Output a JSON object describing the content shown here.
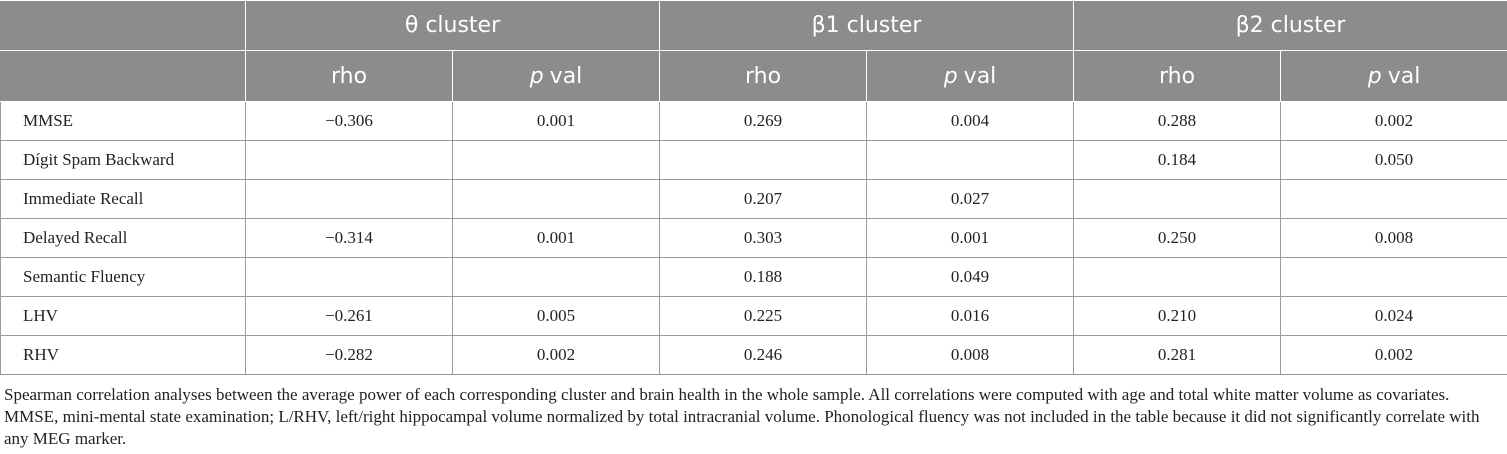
{
  "table": {
    "groups": [
      "θ cluster",
      "β1 cluster",
      "β2 cluster"
    ],
    "subheaders": [
      {
        "text": "rho"
      },
      {
        "italic": "p",
        "text": "val"
      },
      {
        "text": "rho"
      },
      {
        "italic": "p",
        "text": "val"
      },
      {
        "text": "rho"
      },
      {
        "italic": "p",
        "text": "val"
      }
    ],
    "rows": [
      {
        "label": "MMSE",
        "cells": [
          "−0.306",
          "0.001",
          "0.269",
          "0.004",
          "0.288",
          "0.002"
        ]
      },
      {
        "label": "Dígit Spam Backward",
        "cells": [
          null,
          null,
          null,
          null,
          "0.184",
          "0.050"
        ]
      },
      {
        "label": "Immediate Recall",
        "cells": [
          null,
          null,
          "0.207",
          "0.027",
          null,
          null
        ]
      },
      {
        "label": "Delayed Recall",
        "cells": [
          "−0.314",
          "0.001",
          "0.303",
          "0.001",
          "0.250",
          "0.008"
        ]
      },
      {
        "label": "Semantic Fluency",
        "cells": [
          null,
          null,
          "0.188",
          "0.049",
          null,
          null
        ]
      },
      {
        "label": "LHV",
        "cells": [
          "−0.261",
          "0.005",
          "0.225",
          "0.016",
          "0.210",
          "0.024"
        ]
      },
      {
        "label": "RHV",
        "cells": [
          "−0.282",
          "0.002",
          "0.246",
          "0.008",
          "0.281",
          "0.002"
        ]
      }
    ],
    "note": "Spearman correlation analyses between the average power of each corresponding cluster and brain health in the whole sample. All correlations were computed with age and total white matter volume as covariates. MMSE, mini-mental state examination; L/RHV, left/right hippocampal volume normalized by total intracranial volume. Phonological fluency was not included in the table because it did not significantly correlate with any MEG marker."
  }
}
